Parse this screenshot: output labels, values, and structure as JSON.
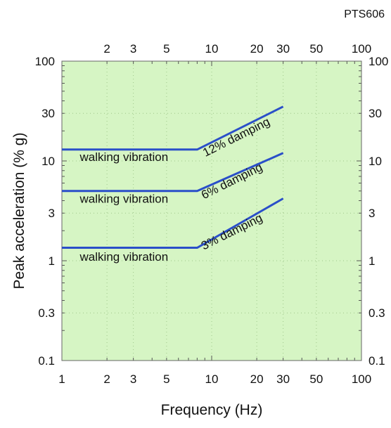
{
  "figure_ref": "PTS606",
  "chart_data": {
    "type": "line",
    "title": "",
    "xlabel": "Frequency (Hz)",
    "ylabel": "Peak acceleration (%   g)",
    "xscale": "log",
    "yscale": "log",
    "xlim": [
      1,
      100
    ],
    "ylim": [
      0.1,
      100
    ],
    "grid": "dotted",
    "background_color": "#d6f5c4",
    "line_color": "#2a4fc9",
    "x_ticks": [
      1,
      2,
      3,
      5,
      10,
      20,
      30,
      50,
      100
    ],
    "x_tick_labels": [
      "1",
      "2",
      "3",
      "5",
      "10",
      "20",
      "30",
      "50",
      "100"
    ],
    "x_top_ticks": [
      2,
      3,
      5,
      10,
      20,
      30,
      50,
      100
    ],
    "x_top_tick_labels": [
      "2",
      "3",
      "5",
      "10",
      "20",
      "30",
      "50",
      "100"
    ],
    "y_ticks": [
      0.1,
      0.3,
      1,
      3,
      10,
      30,
      100
    ],
    "y_tick_labels": [
      "0.1",
      "0.3",
      "1",
      "3",
      "10",
      "30",
      "100"
    ],
    "series": [
      {
        "x": [
          1,
          8,
          30
        ],
        "y": [
          13,
          13,
          35
        ]
      },
      {
        "x": [
          1,
          8,
          30
        ],
        "y": [
          5,
          5,
          12
        ]
      },
      {
        "x": [
          1,
          8,
          30
        ],
        "y": [
          1.35,
          1.35,
          4.2
        ]
      }
    ],
    "annotations": [
      {
        "text": "walking vibration",
        "x": 2.6,
        "y": 10
      },
      {
        "text": "walking vibration",
        "x": 2.6,
        "y": 3.8
      },
      {
        "text": "walking vibration",
        "x": 2.6,
        "y": 1
      },
      {
        "text": "12% damping",
        "x": 15,
        "y": 16
      },
      {
        "text": "6% damping",
        "x": 14,
        "y": 5.8
      },
      {
        "text": "3% damping",
        "x": 14,
        "y": 1.8
      }
    ]
  }
}
